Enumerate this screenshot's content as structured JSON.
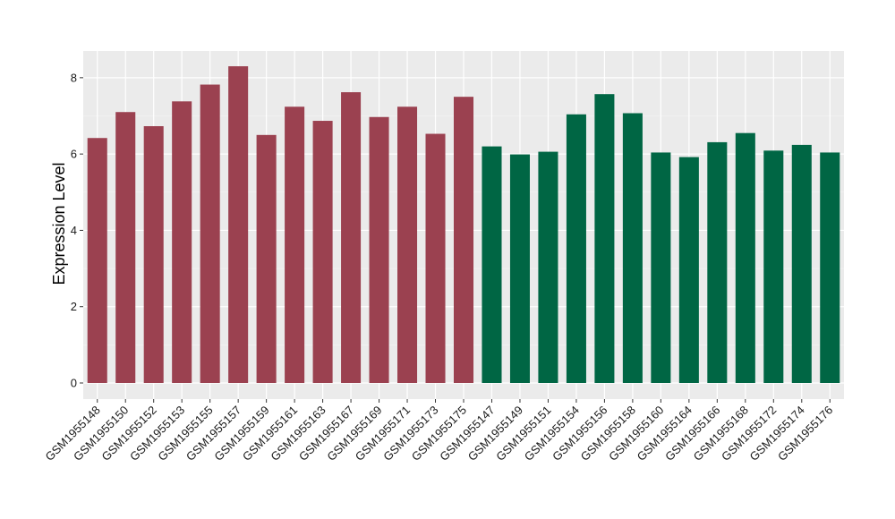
{
  "chart_data": {
    "type": "bar",
    "title": "",
    "xlabel": "",
    "ylabel": "Expression Level",
    "ylim": [
      0,
      8.7
    ],
    "yticks": [
      0,
      2,
      4,
      6,
      8
    ],
    "grid": true,
    "legend": "none",
    "background": "#EBEBEB",
    "categories": [
      "GSM1955148",
      "GSM1955150",
      "GSM1955152",
      "GSM1955153",
      "GSM1955155",
      "GSM1955157",
      "GSM1955159",
      "GSM1955161",
      "GSM1955163",
      "GSM1955167",
      "GSM1955169",
      "GSM1955171",
      "GSM1955173",
      "GSM1955175",
      "GSM1955147",
      "GSM1955149",
      "GSM1955151",
      "GSM1955154",
      "GSM1955156",
      "GSM1955158",
      "GSM1955160",
      "GSM1955164",
      "GSM1955166",
      "GSM1955168",
      "GSM1955172",
      "GSM1955174",
      "GSM1955176"
    ],
    "values": [
      6.42,
      7.1,
      6.73,
      7.38,
      7.82,
      8.3,
      6.5,
      7.24,
      6.87,
      7.62,
      6.97,
      7.24,
      6.53,
      7.5,
      6.2,
      5.99,
      6.06,
      7.04,
      7.57,
      7.07,
      6.04,
      5.92,
      6.31,
      6.55,
      6.09,
      6.24,
      6.04
    ],
    "colors": [
      "#9B4150",
      "#9B4150",
      "#9B4150",
      "#9B4150",
      "#9B4150",
      "#9B4150",
      "#9B4150",
      "#9B4150",
      "#9B4150",
      "#9B4150",
      "#9B4150",
      "#9B4150",
      "#9B4150",
      "#9B4150",
      "#006644",
      "#006644",
      "#006644",
      "#006644",
      "#006644",
      "#006644",
      "#006644",
      "#006644",
      "#006644",
      "#006644",
      "#006644",
      "#006644",
      "#006644"
    ]
  }
}
